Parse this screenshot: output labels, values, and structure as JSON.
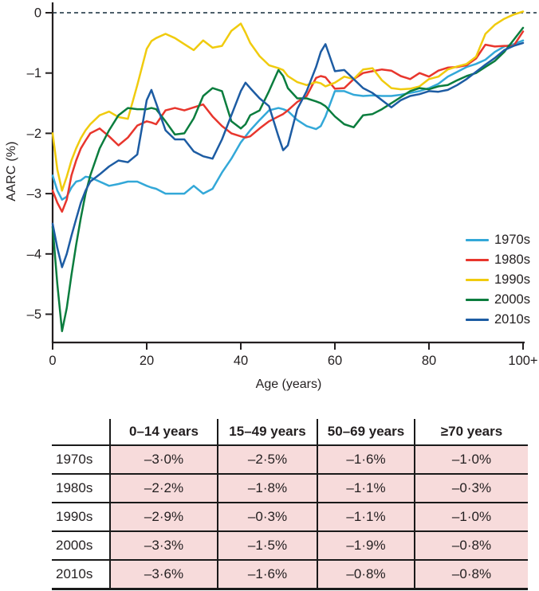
{
  "figure_kind": "line chart with summary table",
  "accent_colors": {
    "axis_text": "#231f20",
    "zero_line": "#4d5f6b",
    "table_cell_pink": "#f7dbdb",
    "table_border": "#1a1a1a"
  },
  "chart_data": {
    "type": "line",
    "xlabel": "Age (years)",
    "ylabel": "AARC (%)",
    "xlim": [
      0,
      100
    ],
    "ylim": [
      -5.5,
      0.25
    ],
    "grid": false,
    "zero_line": {
      "value": 0,
      "style": "dashed",
      "color": "#4d5f6b"
    },
    "xticks": {
      "values": [
        0,
        20,
        40,
        60,
        80,
        100
      ],
      "labels": [
        "0",
        "20",
        "40",
        "60",
        "80",
        "100+"
      ]
    },
    "yticks": {
      "values": [
        0,
        -1,
        -2,
        -3,
        -4,
        -5
      ],
      "labels": [
        "0",
        "–1",
        "–2",
        "–3",
        "–4",
        "–5"
      ]
    },
    "legend_position": "lower right",
    "x": [
      0,
      1,
      2,
      3,
      4,
      5,
      6,
      7,
      8,
      10,
      12,
      14,
      16,
      18,
      20,
      21,
      22,
      24,
      26,
      28,
      30,
      32,
      34,
      36,
      38,
      40,
      41,
      42,
      44,
      46,
      48,
      49,
      50,
      52,
      54,
      56,
      57,
      58,
      60,
      62,
      64,
      66,
      68,
      70,
      72,
      74,
      76,
      78,
      80,
      82,
      84,
      86,
      88,
      90,
      92,
      94,
      96,
      98,
      100
    ],
    "series": [
      {
        "name": "1970s",
        "color": "#33a8d8",
        "values": [
          -2.7,
          -2.95,
          -3.1,
          -3.05,
          -2.9,
          -2.8,
          -2.78,
          -2.72,
          -2.73,
          -2.8,
          -2.87,
          -2.84,
          -2.8,
          -2.8,
          -2.87,
          -2.9,
          -2.92,
          -3.0,
          -3.0,
          -3.0,
          -2.87,
          -3.0,
          -2.92,
          -2.65,
          -2.42,
          -2.15,
          -2.05,
          -1.95,
          -1.78,
          -1.62,
          -1.58,
          -1.6,
          -1.63,
          -1.78,
          -1.88,
          -1.93,
          -1.88,
          -1.72,
          -1.3,
          -1.3,
          -1.36,
          -1.38,
          -1.37,
          -1.38,
          -1.38,
          -1.36,
          -1.33,
          -1.3,
          -1.25,
          -1.18,
          -1.06,
          -0.98,
          -0.9,
          -0.85,
          -0.78,
          -0.65,
          -0.56,
          -0.52,
          -0.46
        ]
      },
      {
        "name": "1980s",
        "color": "#e8362d",
        "values": [
          -2.95,
          -3.15,
          -3.3,
          -3.1,
          -2.7,
          -2.45,
          -2.25,
          -2.12,
          -2.0,
          -1.92,
          -2.05,
          -2.2,
          -2.07,
          -1.87,
          -1.8,
          -1.82,
          -1.85,
          -1.62,
          -1.58,
          -1.62,
          -1.57,
          -1.52,
          -1.72,
          -1.88,
          -2.0,
          -2.05,
          -2.07,
          -2.05,
          -1.92,
          -1.8,
          -1.72,
          -1.68,
          -1.62,
          -1.48,
          -1.38,
          -1.08,
          -1.05,
          -1.07,
          -1.26,
          -1.25,
          -1.1,
          -1.0,
          -0.97,
          -0.94,
          -0.96,
          -1.05,
          -1.1,
          -1.0,
          -1.06,
          -0.96,
          -0.91,
          -0.9,
          -0.87,
          -0.76,
          -0.53,
          -0.56,
          -0.55,
          -0.55,
          -0.31
        ]
      },
      {
        "name": "1990s",
        "color": "#f0cb0e",
        "values": [
          -2.0,
          -2.6,
          -2.95,
          -2.72,
          -2.45,
          -2.25,
          -2.08,
          -1.95,
          -1.85,
          -1.7,
          -1.64,
          -1.73,
          -1.76,
          -1.2,
          -0.6,
          -0.47,
          -0.42,
          -0.35,
          -0.42,
          -0.52,
          -0.62,
          -0.46,
          -0.58,
          -0.55,
          -0.3,
          -0.18,
          -0.33,
          -0.5,
          -0.72,
          -0.87,
          -0.92,
          -0.95,
          -1.05,
          -1.15,
          -1.2,
          -1.15,
          -1.17,
          -1.22,
          -1.16,
          -1.06,
          -1.1,
          -0.94,
          -0.92,
          -1.12,
          -1.25,
          -1.27,
          -1.26,
          -1.22,
          -1.1,
          -1.06,
          -0.94,
          -0.89,
          -0.85,
          -0.73,
          -0.35,
          -0.2,
          -0.1,
          -0.03,
          0.02
        ]
      },
      {
        "name": "2000s",
        "color": "#0b7d3e",
        "values": [
          -3.55,
          -4.5,
          -5.28,
          -4.9,
          -4.35,
          -3.85,
          -3.4,
          -3.0,
          -2.7,
          -2.25,
          -1.95,
          -1.7,
          -1.58,
          -1.6,
          -1.6,
          -1.58,
          -1.6,
          -1.8,
          -2.02,
          -2.0,
          -1.75,
          -1.38,
          -1.25,
          -1.3,
          -1.8,
          -1.92,
          -1.85,
          -1.7,
          -1.62,
          -1.3,
          -0.95,
          -1.05,
          -1.25,
          -1.42,
          -1.42,
          -1.47,
          -1.5,
          -1.55,
          -1.72,
          -1.85,
          -1.9,
          -1.7,
          -1.68,
          -1.6,
          -1.5,
          -1.4,
          -1.3,
          -1.25,
          -1.27,
          -1.22,
          -1.2,
          -1.12,
          -1.05,
          -1.0,
          -0.9,
          -0.8,
          -0.65,
          -0.45,
          -0.25
        ]
      },
      {
        "name": "2010s",
        "color": "#1d5ca3",
        "values": [
          -3.5,
          -3.9,
          -4.22,
          -4.0,
          -3.7,
          -3.42,
          -3.15,
          -2.95,
          -2.8,
          -2.68,
          -2.55,
          -2.45,
          -2.48,
          -2.35,
          -1.45,
          -1.28,
          -1.5,
          -1.95,
          -2.1,
          -2.1,
          -2.3,
          -2.38,
          -2.42,
          -2.1,
          -1.7,
          -1.3,
          -1.16,
          -1.25,
          -1.42,
          -1.55,
          -2.05,
          -2.28,
          -2.2,
          -1.6,
          -1.3,
          -0.9,
          -0.65,
          -0.52,
          -0.97,
          -0.95,
          -1.1,
          -1.25,
          -1.33,
          -1.45,
          -1.57,
          -1.45,
          -1.38,
          -1.35,
          -1.3,
          -1.31,
          -1.28,
          -1.2,
          -1.1,
          -0.98,
          -0.86,
          -0.75,
          -0.62,
          -0.55,
          -0.5
        ]
      }
    ]
  },
  "axis": {
    "y_label": "AARC (%)",
    "x_label": "Age (years)"
  },
  "table": {
    "columns": [
      "",
      "0–14 years",
      "15–49 years",
      "50–69 years",
      "≥70 years"
    ],
    "rows": [
      {
        "label": "1970s",
        "values": [
          "–3·0%",
          "–2·5%",
          "–1·6%",
          "–1·0%"
        ]
      },
      {
        "label": "1980s",
        "values": [
          "–2·2%",
          "–1·8%",
          "–1·1%",
          "–0·3%"
        ]
      },
      {
        "label": "1990s",
        "values": [
          "–2·9%",
          "–0·3%",
          "–1·1%",
          "–1·0%"
        ]
      },
      {
        "label": "2000s",
        "values": [
          "–3·3%",
          "–1·5%",
          "–1·9%",
          "–0·8%"
        ]
      },
      {
        "label": "2010s",
        "values": [
          "–3·6%",
          "–1·6%",
          "–0·8%",
          "–0·8%"
        ]
      }
    ]
  }
}
